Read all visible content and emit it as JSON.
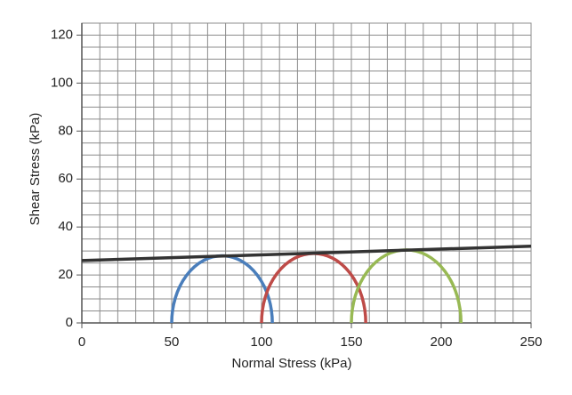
{
  "chart_data": {
    "type": "mohr",
    "xlabel": "Normal  Stress (kPa)",
    "ylabel": "Shear Stress (kPa)",
    "xlim": [
      0,
      250
    ],
    "ylim": [
      0,
      125
    ],
    "xticks": [
      0,
      50,
      100,
      150,
      200,
      250
    ],
    "yticks": [
      0,
      20,
      40,
      60,
      80,
      100,
      120
    ],
    "grid": true,
    "minor_grid": {
      "x": 10,
      "y": 5
    },
    "circles": [
      {
        "sigma3": 50,
        "sigma1": 106,
        "color": "#4a7ebb"
      },
      {
        "sigma3": 100,
        "sigma1": 158,
        "color": "#be4b48"
      },
      {
        "sigma3": 150,
        "sigma1": 211,
        "color": "#98b954"
      }
    ],
    "envelope": {
      "x": [
        0,
        250
      ],
      "values": [
        26,
        32
      ],
      "color": "#333333"
    }
  }
}
